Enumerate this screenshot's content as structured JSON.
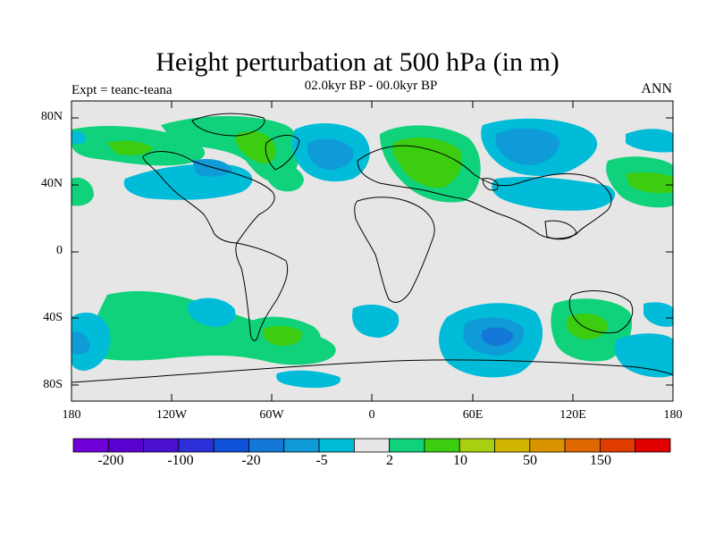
{
  "title": "Height perturbation at 500 hPa (in m)",
  "experiment_label": "Expt = teanc-teana",
  "period_label": "02.0kyr BP - 00.0kyr BP",
  "season_label": "ANN",
  "lat_ticks": [
    "80N",
    "40N",
    "0",
    "40S",
    "80S"
  ],
  "lon_ticks": [
    "180",
    "120W",
    "60W",
    "0",
    "60E",
    "120E",
    "180"
  ],
  "colorbar": {
    "colors": [
      "#6f00d8",
      "#5a00d0",
      "#4a10d0",
      "#2d30d8",
      "#0f50d8",
      "#1378d8",
      "#0f9ad8",
      "#00bcd8",
      "#e6e6e6",
      "#10d27a",
      "#3ccc10",
      "#a8d010",
      "#d0b400",
      "#da9400",
      "#e06800",
      "#e03c00",
      "#e00000"
    ],
    "labels": [
      "-200",
      "-100",
      "-20",
      "-5",
      "2",
      "10",
      "50",
      "150"
    ]
  }
}
